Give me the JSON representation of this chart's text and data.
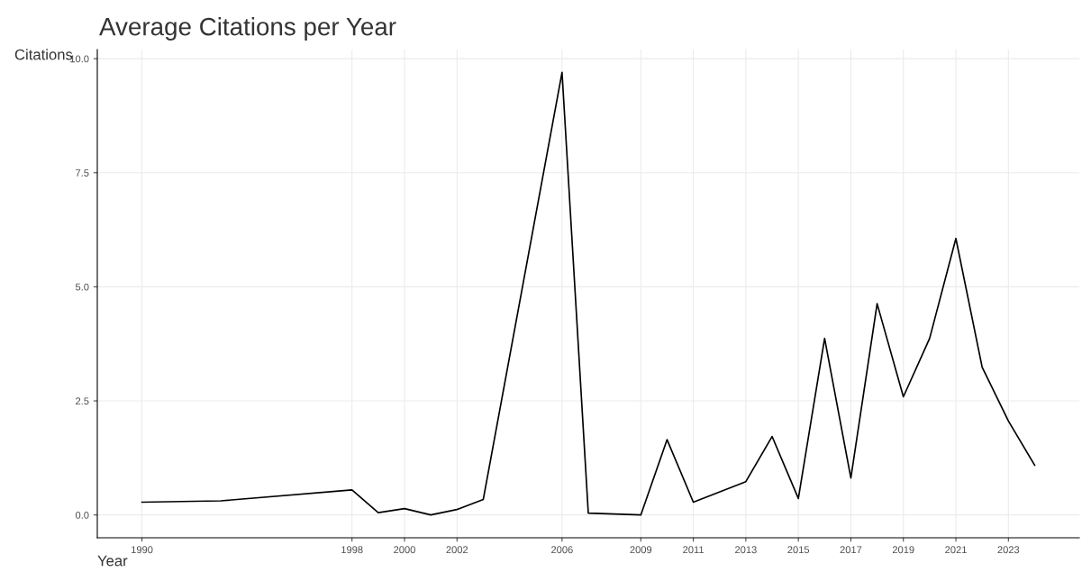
{
  "chart_data": {
    "type": "line",
    "title": "Average Citations per Year",
    "xlabel": "Year",
    "ylabel": "Citations",
    "x": [
      1990,
      1993,
      1998,
      1999,
      2000,
      2001,
      2002,
      2003,
      2006,
      2007,
      2009,
      2010,
      2011,
      2013,
      2014,
      2015,
      2016,
      2017,
      2018,
      2019,
      2020,
      2021,
      2022,
      2023,
      2024
    ],
    "series": [
      {
        "color": "#000000",
        "values": [
          0.28,
          0.31,
          0.55,
          0.05,
          0.14,
          0.0,
          0.12,
          0.34,
          9.7,
          0.04,
          0.0,
          1.65,
          0.28,
          0.73,
          1.72,
          0.36,
          3.87,
          0.81,
          4.63,
          2.59,
          3.87,
          6.06,
          3.24,
          2.06,
          1.09
        ]
      }
    ],
    "xlim": [
      1988.3,
      2025.7
    ],
    "xticks": [
      1990,
      1998,
      2000,
      2002,
      2006,
      2009,
      2011,
      2013,
      2015,
      2017,
      2019,
      2021,
      2023
    ],
    "ylim": [
      -0.5,
      10.2
    ],
    "yticks": [
      {
        "value": 0,
        "label": "0.0"
      },
      {
        "value": 2.5,
        "label": "2.5"
      },
      {
        "value": 5,
        "label": "5.0"
      },
      {
        "value": 7.5,
        "label": "7.5"
      },
      {
        "value": 10,
        "label": "10.0"
      }
    ],
    "grid": true,
    "line_style": "solid",
    "marker": "none"
  }
}
